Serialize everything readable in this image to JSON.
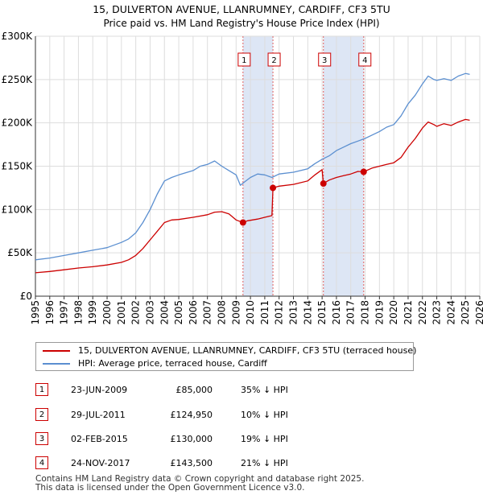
{
  "colors": {
    "property": "#cc0000",
    "hpi": "#5b8fd0",
    "band": "#dde6f5",
    "vline": "#e06060",
    "grid": "#dddddd"
  },
  "chart_data": {
    "type": "line",
    "title": "15, DULVERTON AVENUE, LLANRUMNEY, CARDIFF, CF3 5TU",
    "subtitle": "Price paid vs. HM Land Registry's House Price Index (HPI)",
    "xlim": [
      1995,
      2026
    ],
    "ylim": [
      0,
      300000
    ],
    "x_ticks": [
      1995,
      1996,
      1997,
      1998,
      1999,
      2000,
      2001,
      2002,
      2003,
      2004,
      2005,
      2006,
      2007,
      2008,
      2009,
      2010,
      2011,
      2012,
      2013,
      2014,
      2015,
      2016,
      2017,
      2018,
      2019,
      2020,
      2021,
      2022,
      2023,
      2024,
      2025,
      2026
    ],
    "y_ticks": [
      {
        "value": 0,
        "label": "£0"
      },
      {
        "value": 50000,
        "label": "£50K"
      },
      {
        "value": 100000,
        "label": "£100K"
      },
      {
        "value": 150000,
        "label": "£150K"
      },
      {
        "value": 200000,
        "label": "£200K"
      },
      {
        "value": 250000,
        "label": "£250K"
      },
      {
        "value": 300000,
        "label": "£300K"
      }
    ],
    "shaded_periods": [
      [
        2009.48,
        2011.57
      ],
      [
        2015.09,
        2017.9
      ]
    ],
    "series": [
      {
        "name": "15, DULVERTON AVENUE, LLANRUMNEY, CARDIFF, CF3 5TU (terraced house)",
        "x": [
          1995,
          1996,
          1997,
          1998,
          1999,
          2000,
          2001,
          2001.5,
          2002,
          2002.5,
          2003,
          2003.5,
          2004,
          2004.5,
          2005,
          2006,
          2007,
          2007.5,
          2008,
          2008.5,
          2009,
          2009.48,
          2009.8,
          2010.5,
          2011,
          2011.5,
          2011.57,
          2012,
          2013,
          2014,
          2014.5,
          2015,
          2015.09,
          2015.5,
          2016,
          2016.5,
          2017,
          2017.5,
          2017.9,
          2018.5,
          2019,
          2019.5,
          2020,
          2020.5,
          2021,
          2021.5,
          2022,
          2022.4,
          2022.8,
          2023,
          2023.5,
          2024,
          2024.5,
          2025,
          2025.3
        ],
        "y": [
          27000,
          28500,
          30500,
          32500,
          34000,
          36000,
          39000,
          42000,
          47000,
          55000,
          65000,
          75000,
          85000,
          88000,
          88500,
          91000,
          94000,
          97000,
          97500,
          95000,
          88000,
          85000,
          87000,
          89000,
          91000,
          93000,
          124950,
          127000,
          129000,
          133000,
          140000,
          146000,
          130000,
          134000,
          137000,
          139000,
          141000,
          144000,
          143500,
          148000,
          150000,
          152000,
          154000,
          160000,
          172000,
          182000,
          194000,
          201000,
          198000,
          196000,
          199000,
          197000,
          201000,
          204000,
          203000
        ]
      },
      {
        "name": "HPI: Average price, terraced house, Cardiff",
        "x": [
          1995,
          1996,
          1997,
          1998,
          1999,
          2000,
          2001,
          2001.5,
          2002,
          2002.5,
          2003,
          2003.5,
          2004,
          2004.5,
          2005,
          2006,
          2006.5,
          2007,
          2007.5,
          2008,
          2008.5,
          2009,
          2009.3,
          2009.6,
          2010,
          2010.5,
          2011,
          2011.5,
          2012,
          2013,
          2014,
          2014.5,
          2015,
          2015.5,
          2016,
          2016.5,
          2017,
          2017.5,
          2018,
          2018.5,
          2019,
          2019.5,
          2020,
          2020.5,
          2021,
          2021.5,
          2022,
          2022.4,
          2022.8,
          2023,
          2023.5,
          2024,
          2024.5,
          2025,
          2025.3
        ],
        "y": [
          42000,
          44000,
          47000,
          50000,
          53000,
          56000,
          62000,
          66000,
          73000,
          85000,
          100000,
          118000,
          133000,
          137000,
          140000,
          145000,
          150000,
          152000,
          156000,
          150000,
          145000,
          140000,
          128000,
          132000,
          137000,
          141000,
          140000,
          137000,
          141000,
          143000,
          147000,
          153000,
          158000,
          162000,
          168000,
          172000,
          176000,
          179000,
          182000,
          186000,
          190000,
          195000,
          198000,
          208000,
          222000,
          232000,
          245000,
          254000,
          250000,
          249000,
          251000,
          249000,
          254000,
          257000,
          256000
        ]
      }
    ],
    "sale_points": [
      {
        "label": "1",
        "x": 2009.48,
        "y": 85000
      },
      {
        "label": "2",
        "x": 2011.57,
        "y": 124950
      },
      {
        "label": "3",
        "x": 2015.09,
        "y": 130000
      },
      {
        "label": "4",
        "x": 2017.9,
        "y": 143500
      }
    ]
  },
  "legend": {
    "property_label": "15, DULVERTON AVENUE, LLANRUMNEY, CARDIFF, CF3 5TU (terraced house)",
    "hpi_label": "HPI: Average price, terraced house, Cardiff"
  },
  "sales": [
    {
      "num": "1",
      "date": "23-JUN-2009",
      "price": "£85,000",
      "hpi": "35% ↓ HPI"
    },
    {
      "num": "2",
      "date": "29-JUL-2011",
      "price": "£124,950",
      "hpi": "10% ↓ HPI"
    },
    {
      "num": "3",
      "date": "02-FEB-2015",
      "price": "£130,000",
      "hpi": "19% ↓ HPI"
    },
    {
      "num": "4",
      "date": "24-NOV-2017",
      "price": "£143,500",
      "hpi": "21% ↓ HPI"
    }
  ],
  "footer": {
    "line1": "Contains HM Land Registry data © Crown copyright and database right 2025.",
    "line2": "This data is licensed under the Open Government Licence v3.0."
  }
}
